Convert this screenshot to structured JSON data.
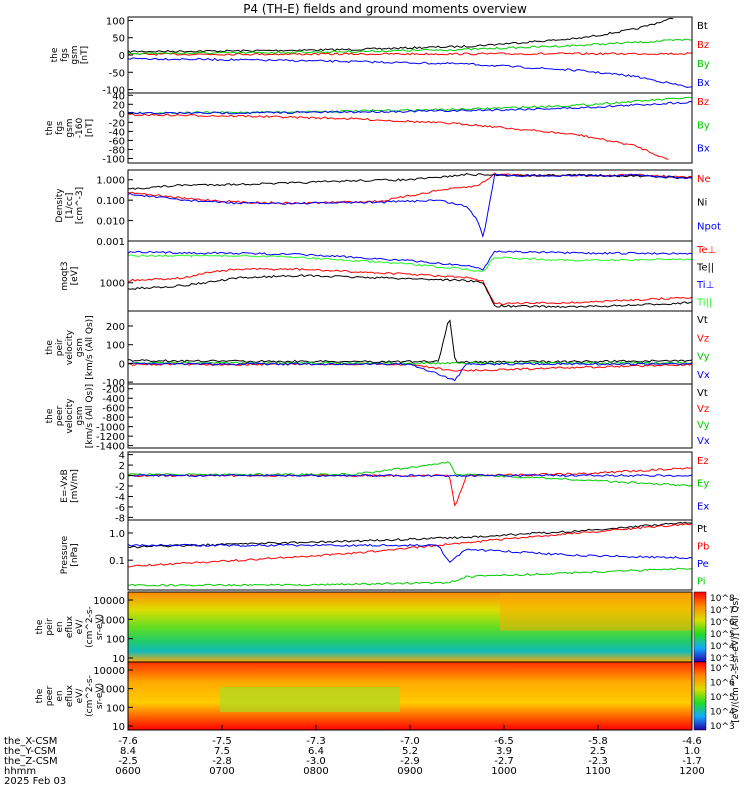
{
  "title": "P4 (TH-E) fields and ground moments overview",
  "colors": {
    "black": "#000000",
    "red": "#ff0000",
    "green": "#00cc00",
    "blue": "#0000ff",
    "lime": "#22ff22"
  },
  "chart_data": [
    {
      "type": "line",
      "ylabel": [
        "the",
        "fgs",
        "gsm",
        "[nT]"
      ],
      "yticks": [
        100,
        50,
        0,
        -50,
        -100
      ],
      "ylim": [
        -110,
        110
      ],
      "series": [
        {
          "name": "Bt",
          "color": "#000000",
          "x": [
            0,
            0.2,
            0.4,
            0.6,
            0.8,
            0.9,
            0.97
          ],
          "y": [
            10,
            12,
            16,
            25,
            48,
            75,
            108
          ]
        },
        {
          "name": "Bz",
          "color": "#ff0000",
          "x": [
            0,
            0.5,
            1
          ],
          "y": [
            2,
            3,
            4
          ]
        },
        {
          "name": "By",
          "color": "#00cc00",
          "x": [
            0,
            0.2,
            0.4,
            0.6,
            0.8,
            1
          ],
          "y": [
            5,
            6,
            10,
            16,
            28,
            45
          ]
        },
        {
          "name": "Bx",
          "color": "#0000ff",
          "x": [
            0,
            0.2,
            0.4,
            0.6,
            0.8,
            0.9,
            1
          ],
          "y": [
            -10,
            -14,
            -19,
            -26,
            -45,
            -62,
            -95
          ]
        }
      ]
    },
    {
      "type": "line",
      "ylabel": [
        "the",
        "fgs",
        "gsm",
        "-160",
        "[nT]"
      ],
      "yticks": [
        40,
        20,
        0,
        -20,
        -40,
        -60,
        -80,
        -100
      ],
      "ylim": [
        -110,
        45
      ],
      "series": [
        {
          "name": "Bz",
          "color": "#ff0000",
          "x": [
            0,
            0.2,
            0.4,
            0.6,
            0.8,
            0.9,
            0.96
          ],
          "y": [
            -3,
            -6,
            -12,
            -24,
            -48,
            -72,
            -104
          ]
        },
        {
          "name": "By",
          "color": "#00cc00",
          "x": [
            0,
            0.2,
            0.4,
            0.6,
            0.8,
            1
          ],
          "y": [
            1,
            2,
            5,
            9,
            18,
            35
          ]
        },
        {
          "name": "Bx",
          "color": "#0000ff",
          "x": [
            0,
            0.2,
            0.4,
            0.6,
            0.8,
            1
          ],
          "y": [
            0,
            1,
            3,
            6,
            12,
            25
          ]
        }
      ]
    },
    {
      "type": "line",
      "ylabel": [
        "Density",
        "[1/cc]",
        "[cm^-3]"
      ],
      "yticks": [
        "1.000",
        "0.100",
        "0.010",
        "0.001"
      ],
      "ylim": [
        0.001,
        3
      ],
      "scale": "log",
      "series": [
        {
          "name": "Ne",
          "color": "#ff0000",
          "x": [
            0,
            0.1,
            0.2,
            0.3,
            0.45,
            0.55,
            0.62,
            0.65,
            0.7,
            0.8,
            0.9,
            1
          ],
          "y": [
            0.25,
            0.12,
            0.08,
            0.07,
            0.09,
            0.3,
            0.5,
            1.9,
            1.7,
            1.6,
            1.7,
            1.3
          ]
        },
        {
          "name": "Ni",
          "color": "#000000",
          "x": [
            0,
            0.1,
            0.2,
            0.3,
            0.4,
            0.5,
            0.55,
            0.6,
            0.65,
            0.7,
            0.8,
            0.9,
            1
          ],
          "y": [
            0.35,
            0.55,
            0.6,
            0.7,
            0.9,
            1.0,
            1.3,
            1.8,
            1.7,
            1.6,
            1.7,
            1.5,
            1.2
          ]
        },
        {
          "name": "Npot",
          "color": "#0000ff",
          "x": [
            0,
            0.1,
            0.2,
            0.3,
            0.45,
            0.55,
            0.6,
            0.62,
            0.63,
            0.65,
            0.7,
            0.8,
            0.9,
            1
          ],
          "y": [
            0.2,
            0.1,
            0.07,
            0.07,
            0.08,
            0.1,
            0.05,
            0.01,
            0.0015,
            1.8,
            1.6,
            1.6,
            1.7,
            1.2
          ]
        }
      ]
    },
    {
      "type": "line",
      "ylabel": [
        "moqt3",
        "[eV]"
      ],
      "yticks": [
        1000
      ],
      "ylim": [
        100,
        30000
      ],
      "scale": "log",
      "series": [
        {
          "name": "Te⊥",
          "color": "#ff0000",
          "x": [
            0,
            0.1,
            0.15,
            0.2,
            0.3,
            0.5,
            0.6,
            0.63,
            0.65,
            0.8,
            0.9,
            1
          ],
          "y": [
            1200,
            1500,
            2500,
            3000,
            3000,
            2000,
            1500,
            1100,
            180,
            200,
            250,
            300
          ]
        },
        {
          "name": "Te||",
          "color": "#000000",
          "x": [
            0,
            0.1,
            0.2,
            0.3,
            0.5,
            0.6,
            0.63,
            0.65,
            0.8,
            0.9,
            1
          ],
          "y": [
            600,
            800,
            1500,
            1800,
            1400,
            1200,
            1000,
            150,
            140,
            160,
            200
          ]
        },
        {
          "name": "Ti⊥",
          "color": "#0000ff",
          "x": [
            0,
            0.2,
            0.3,
            0.4,
            0.5,
            0.6,
            0.63,
            0.65,
            0.8,
            1
          ],
          "y": [
            12000,
            11000,
            10000,
            8000,
            6000,
            4000,
            3000,
            13000,
            11000,
            11000
          ]
        },
        {
          "name": "Ti||",
          "color": "#22ff22",
          "x": [
            0,
            0.2,
            0.3,
            0.4,
            0.5,
            0.6,
            0.63,
            0.65,
            0.8,
            1
          ],
          "y": [
            9000,
            9000,
            8000,
            6000,
            4500,
            3000,
            2500,
            8000,
            6000,
            7000
          ]
        }
      ]
    },
    {
      "type": "line",
      "ylabel": [
        "the",
        "peir",
        "velocity",
        "gsm",
        "[km/s (All Qs)]"
      ],
      "yticks": [
        200,
        100,
        0,
        -100
      ],
      "ylim": [
        -110,
        280
      ],
      "series": [
        {
          "name": "Vt",
          "color": "#000000",
          "x": [
            0,
            0.2,
            0.4,
            0.55,
            0.57,
            0.58,
            0.6,
            0.8,
            1
          ],
          "y": [
            15,
            12,
            10,
            10,
            250,
            10,
            8,
            10,
            15
          ]
        },
        {
          "name": "Vz",
          "color": "#ff0000",
          "x": [
            0,
            0.5,
            0.58,
            1
          ],
          "y": [
            -5,
            -5,
            -40,
            -5
          ]
        },
        {
          "name": "Vy",
          "color": "#00cc00",
          "x": [
            0,
            0.5,
            1
          ],
          "y": [
            2,
            2,
            2
          ]
        },
        {
          "name": "Vx",
          "color": "#0000ff",
          "x": [
            0,
            0.5,
            0.58,
            0.6,
            1
          ],
          "y": [
            -3,
            -3,
            -90,
            -3,
            -3
          ]
        }
      ]
    },
    {
      "type": "line",
      "ylabel": [
        "the",
        "peer",
        "velocity",
        "gsm",
        "[km/s (All Qs)]"
      ],
      "yticks": [
        -200,
        -400,
        -600,
        -800,
        -1000,
        -1200,
        -1400
      ],
      "ylim": [
        -1450,
        -100
      ],
      "series": []
    },
    {
      "type": "line",
      "ylabel": [
        "E=-VxB",
        "[mV/m]"
      ],
      "yticks": [
        4,
        2,
        0,
        -2,
        -4,
        -6,
        -8
      ],
      "ylim": [
        -8.5,
        4.5
      ],
      "series": [
        {
          "name": "Ez",
          "color": "#ff0000",
          "x": [
            0,
            0.2,
            0.4,
            0.57,
            0.58,
            0.6,
            0.8,
            1
          ],
          "y": [
            0,
            0,
            0,
            0,
            -6,
            0,
            0.3,
            1.5
          ]
        },
        {
          "name": "Ey",
          "color": "#00cc00",
          "x": [
            0,
            0.2,
            0.4,
            0.57,
            0.58,
            0.6,
            0.8,
            1
          ],
          "y": [
            0.2,
            0.2,
            0.2,
            2.5,
            0.2,
            0.2,
            -0.8,
            -2
          ]
        },
        {
          "name": "Ex",
          "color": "#0000ff",
          "x": [
            0,
            0.5,
            1
          ],
          "y": [
            0,
            0,
            0
          ]
        }
      ]
    },
    {
      "type": "line",
      "ylabel": [
        "Pressure",
        "[nPa]"
      ],
      "yticks": [
        "1.0",
        "0.1"
      ],
      "ylim": [
        0.008,
        3
      ],
      "scale": "log",
      "series": [
        {
          "name": "Pt",
          "color": "#000000",
          "x": [
            0,
            0.2,
            0.4,
            0.6,
            0.8,
            1
          ],
          "y": [
            0.3,
            0.4,
            0.5,
            0.7,
            1.2,
            2.5
          ]
        },
        {
          "name": "Pb",
          "color": "#ff0000",
          "x": [
            0,
            0.2,
            0.4,
            0.6,
            0.8,
            1
          ],
          "y": [
            0.06,
            0.1,
            0.18,
            0.45,
            1.0,
            2.2
          ]
        },
        {
          "name": "Pe",
          "color": "#0000ff",
          "x": [
            0,
            0.2,
            0.4,
            0.55,
            0.57,
            0.6,
            0.8,
            1
          ],
          "y": [
            0.35,
            0.35,
            0.35,
            0.35,
            0.08,
            0.25,
            0.15,
            0.12
          ]
        },
        {
          "name": "Pi",
          "color": "#00cc00",
          "x": [
            0,
            0.2,
            0.4,
            0.57,
            0.6,
            0.8,
            1
          ],
          "y": [
            0.012,
            0.012,
            0.013,
            0.015,
            0.025,
            0.035,
            0.05
          ]
        }
      ]
    },
    {
      "type": "heatmap",
      "ylabel": [
        "the",
        "peir",
        "en",
        "eflux",
        "eV/",
        "(cm^2-s-",
        "sr-eV)"
      ],
      "yticks": [
        10000,
        1000,
        100,
        10
      ],
      "colorbar_ticks": [
        "10^8",
        "10^7",
        "10^6",
        "10^5",
        "10^4",
        "10^3"
      ]
    },
    {
      "type": "heatmap",
      "ylabel": [
        "the",
        "peer",
        "en",
        "eflux",
        "eV/",
        "(cm^2-s-",
        "sr-eV)"
      ],
      "yticks": [
        10000,
        1000,
        100,
        10
      ],
      "colorbar_ticks": [
        "10^7",
        "10^6",
        "10^5",
        "10^4",
        "10^3"
      ]
    }
  ],
  "colorbar_label": "[eV/(cm^2-s-sr-eV)]  (All Qs)",
  "time_axis": {
    "rows": [
      {
        "label": "the_X-CSM",
        "values": [
          "-7.6",
          "-7.5",
          "-7.3",
          "-7.0",
          "-6.5",
          "-5.8",
          "-4.6"
        ]
      },
      {
        "label": "the_Y-CSM",
        "values": [
          "8.4",
          "7.5",
          "6.4",
          "5.2",
          "3.9",
          "2.5",
          "1.0"
        ]
      },
      {
        "label": "the_Z-CSM",
        "values": [
          "-2.5",
          "-2.8",
          "-3.0",
          "-2.9",
          "-2.7",
          "-2.3",
          "-1.7"
        ]
      },
      {
        "label": "hhmm",
        "values": [
          "0600",
          "0700",
          "0800",
          "0900",
          "1000",
          "1100",
          "1200"
        ]
      }
    ],
    "date": "2025 Feb 03"
  }
}
